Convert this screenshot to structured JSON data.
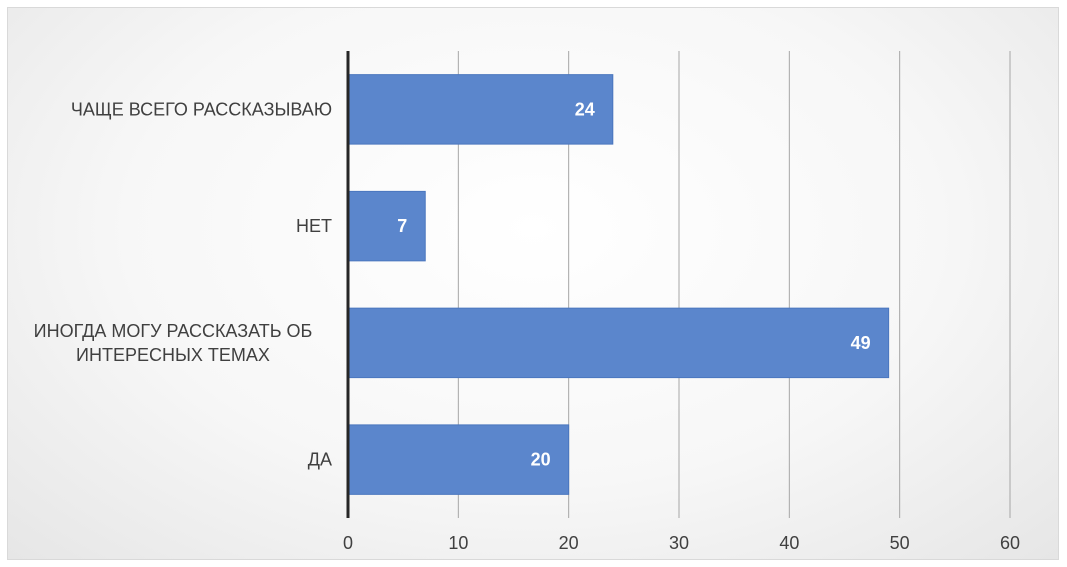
{
  "chart_data": {
    "type": "bar",
    "orientation": "horizontal",
    "title": "",
    "xlabel": "",
    "ylabel": "",
    "categories": [
      [
        "ДА"
      ],
      [
        "ИНОГДА МОГУ РАССКАЗАТЬ ОБ",
        "ИНТЕРЕСНЫХ ТЕМАХ"
      ],
      [
        "НЕТ"
      ],
      [
        "ЧАЩЕ ВСЕГО РАССКАЗЫВАЮ"
      ]
    ],
    "values": [
      20,
      49,
      7,
      24
    ],
    "data_labels": [
      "20",
      "49",
      "7",
      "24"
    ],
    "xlim": [
      0,
      60
    ],
    "x_ticks": [
      "0",
      "10",
      "20",
      "30",
      "40",
      "50",
      "60"
    ],
    "grid": "vertical",
    "legend": "none",
    "colors": {
      "bar": "#5b86cc",
      "bar_edge": "#4a76be",
      "grid": "#a6a6a6",
      "axis": "#262626",
      "text": "#404040",
      "value_text": "#ffffff"
    }
  }
}
